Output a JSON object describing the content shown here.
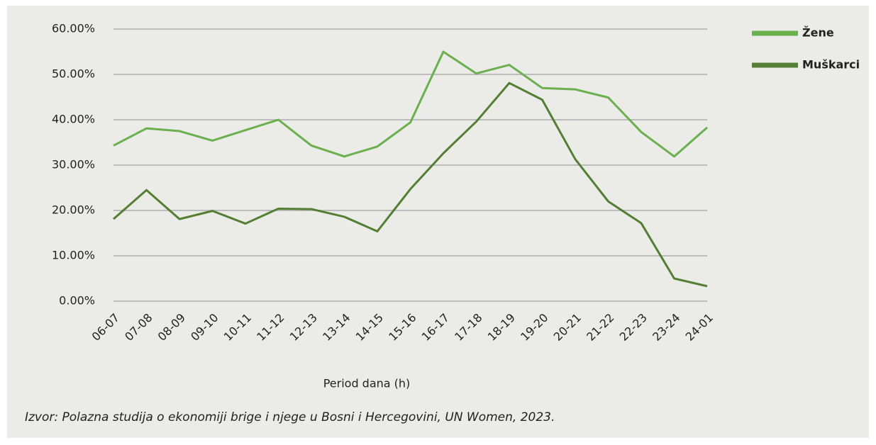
{
  "chart_data": {
    "type": "line",
    "x_label": "Period dana (h)",
    "note": "Izvor: Polazna studija o ekonomiji brige i njege u Bosni i Hercegovini, UN Women, 2023.",
    "categories": [
      "06-07",
      "07-08",
      "08-09",
      "09-10",
      "10-11",
      "11-12",
      "12-13",
      "13-14",
      "14-15",
      "15-16",
      "16-17",
      "17-18",
      "18-19",
      "19-20",
      "20-21",
      "21-22",
      "22-23",
      "23-24",
      "24-01"
    ],
    "series": [
      {
        "name": "Žene",
        "color": "#6ab04c",
        "values": [
          34.3,
          38.1,
          37.5,
          35.4,
          37.7,
          40.0,
          34.3,
          31.9,
          34.1,
          39.4,
          55.0,
          50.2,
          52.1,
          47.0,
          46.7,
          44.9,
          37.3,
          31.9,
          38.3
        ]
      },
      {
        "name": "Muškarci",
        "color": "#547f33",
        "values": [
          18.1,
          24.5,
          18.1,
          19.9,
          17.1,
          20.4,
          20.3,
          18.6,
          15.4,
          24.7,
          32.6,
          39.6,
          48.1,
          44.4,
          31.3,
          22.0,
          17.2,
          5.0,
          3.3
        ]
      }
    ],
    "ylim": [
      0,
      60
    ],
    "yticks": [
      {
        "value": 0,
        "label": "0.00%"
      },
      {
        "value": 10,
        "label": "10.00%"
      },
      {
        "value": 20,
        "label": "20.00%"
      },
      {
        "value": 30,
        "label": "30.00%"
      },
      {
        "value": 40,
        "label": "40.00%"
      },
      {
        "value": 50,
        "label": "50.00%"
      },
      {
        "value": 60,
        "label": "60.00%"
      }
    ],
    "grid": true,
    "legend": "right"
  }
}
